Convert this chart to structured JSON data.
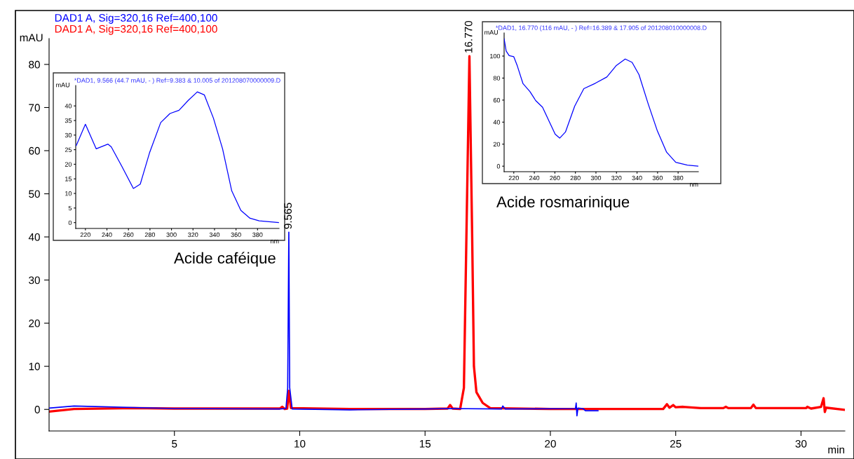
{
  "chart_data": [
    {
      "type": "line",
      "xlabel": "min",
      "ylabel": "mAU",
      "xlim": [
        0,
        31.75
      ],
      "ylim": [
        -5,
        86
      ],
      "xticks": [
        5,
        10,
        15,
        20,
        25,
        30
      ],
      "yticks": [
        0,
        10,
        20,
        30,
        40,
        50,
        60,
        70,
        80
      ],
      "grid": false,
      "legend": "top left",
      "annotations": [
        {
          "text": "9.565",
          "x": 9.565,
          "y": 41.1
        },
        {
          "text": "16.770",
          "x": 16.77,
          "y": 81.9
        },
        "Acide caféique",
        "Acide rosmarinique"
      ],
      "series": [
        {
          "name": "DAD1 A, Sig=320,16 Ref=400,100",
          "color": "#0000ff",
          "x": [
            0,
            1,
            5,
            9.2,
            9.45,
            9.52,
            9.565,
            9.6,
            9.7,
            12,
            15,
            16,
            18.05,
            18.1,
            18.2,
            21,
            21.03,
            21.06,
            21.1,
            21.3,
            21.4,
            21.9
          ],
          "values": [
            0.3,
            0.8,
            0.2,
            0.1,
            0.2,
            5,
            41.1,
            5,
            0.1,
            -0.1,
            0.1,
            0.2,
            0.1,
            0.8,
            0.1,
            0.2,
            1.5,
            -1.5,
            0.3,
            0.2,
            -0.3,
            -0.3
          ]
        },
        {
          "name": "DAD1 A, Sig=320,16 Ref=400,100",
          "color": "#ff0000",
          "x": [
            0,
            1,
            3.4,
            5,
            9.2,
            9.3,
            9.4,
            9.5,
            9.565,
            9.65,
            12,
            15,
            15.9,
            16,
            16.1,
            16.4,
            16.55,
            16.65,
            16.77,
            16.88,
            16.95,
            17.05,
            17.3,
            17.6,
            20,
            24.5,
            24.65,
            24.75,
            24.9,
            25,
            25.3,
            26,
            26.9,
            27,
            27.1,
            28,
            28.1,
            28.2,
            30.2,
            30.25,
            30.4,
            30.8,
            30.9,
            30.95,
            31,
            31.75
          ],
          "values": [
            -0.5,
            0.1,
            0.3,
            0.2,
            0.2,
            0.6,
            0.1,
            0.2,
            4.3,
            0.3,
            0.1,
            0.1,
            0.2,
            1.0,
            0.2,
            0.1,
            5,
            40,
            81.9,
            40,
            10,
            4,
            1.5,
            0.3,
            0.1,
            0.1,
            1.2,
            0.4,
            1,
            0.5,
            0.6,
            0.3,
            0.3,
            0.6,
            0.3,
            0.3,
            1.1,
            0.3,
            0.3,
            0.6,
            0.2,
            0.6,
            2.6,
            -0.6,
            0.4,
            -0.1
          ]
        }
      ]
    },
    {
      "type": "line",
      "title": "*DAD1, 9.566 (44.7 mAU, - ) Ref=9.383 & 10.005 of 201208070000009.D",
      "xlabel": "nm",
      "ylabel": "mAU",
      "xlim": [
        211,
        400
      ],
      "ylim": [
        -2,
        47
      ],
      "xticks": [
        220,
        240,
        260,
        280,
        300,
        320,
        340,
        360,
        380
      ],
      "yticks": [
        0,
        5,
        10,
        15,
        20,
        25,
        30,
        35,
        40
      ],
      "grid": false,
      "series": [
        {
          "color": "#0000ff",
          "x": [
            211.5,
            220,
            230,
            241,
            244,
            254,
            264.6,
            271,
            279.5,
            290,
            298.6,
            307,
            315.6,
            324,
            330.5,
            339,
            347.5,
            356,
            364.5,
            373,
            381.5,
            399.5
          ],
          "values": [
            26.4,
            33.7,
            25.3,
            26.9,
            26,
            19.2,
            11.7,
            13.2,
            23.8,
            34.3,
            37.4,
            38.5,
            41.9,
            44.8,
            43.8,
            35.8,
            25.3,
            10.9,
            4.2,
            1.5,
            0.6,
            0
          ]
        }
      ]
    },
    {
      "type": "line",
      "title": "*DAD1, 16.770 (116 mAU, - ) Ref=16.389 & 17.905 of 201208010000008.D",
      "xlabel": "nm",
      "ylabel": "mAU",
      "xlim": [
        210.6,
        399.7
      ],
      "ylim": [
        -5,
        121
      ],
      "xticks": [
        220,
        240,
        260,
        280,
        300,
        320,
        340,
        360,
        380
      ],
      "yticks": [
        0,
        20,
        40,
        60,
        80,
        100
      ],
      "grid": false,
      "series": [
        {
          "color": "#0000ff",
          "x": [
            210.6,
            212.6,
            215.5,
            220,
            223.4,
            229,
            235.7,
            241.3,
            248,
            254.7,
            260.3,
            264.7,
            270.3,
            279.3,
            288.2,
            299.4,
            310.6,
            319.6,
            328.5,
            335.2,
            341.9,
            350.9,
            359.8,
            368.8,
            377.7,
            389,
            399.7
          ],
          "values": [
            115.7,
            104.5,
            100.4,
            99.4,
            91.2,
            74.9,
            67.8,
            59.6,
            53.5,
            40.2,
            29,
            25.5,
            31,
            54.5,
            70.4,
            75.3,
            81,
            91.2,
            97.3,
            94.3,
            83.1,
            56.5,
            32,
            12.7,
            3.5,
            1,
            0
          ]
        }
      ]
    }
  ]
}
